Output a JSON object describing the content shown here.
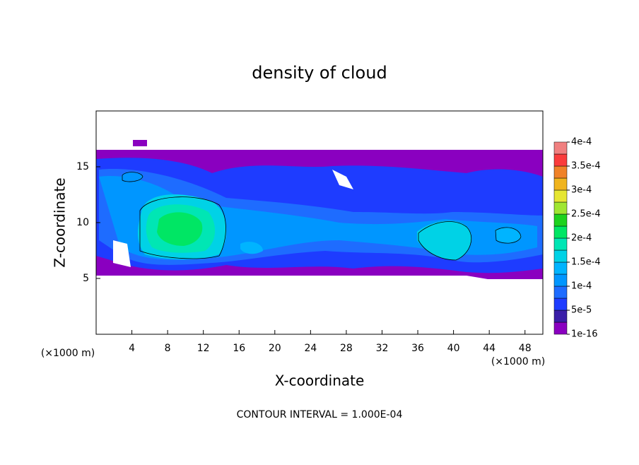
{
  "chart_data": {
    "type": "contour",
    "title": "density of cloud",
    "x_label": "X-coordinate",
    "y_label": "Z-coordinate",
    "x_unit": "(×1000 m)",
    "y_unit": "(×1000 m)",
    "footer": "CONTOUR INTERVAL = 1.000E-04",
    "xlim": [
      0,
      50
    ],
    "ylim": [
      0,
      20
    ],
    "xticks": [
      4,
      8,
      12,
      16,
      20,
      24,
      28,
      32,
      36,
      40,
      44,
      48
    ],
    "yticks": [
      5,
      10,
      15
    ],
    "colorbar_ticks": [
      {
        "value": 1e-16,
        "label": "1e-16"
      },
      {
        "value": 5e-05,
        "label": "5e-5"
      },
      {
        "value": 0.0001,
        "label": "1e-4"
      },
      {
        "value": 0.00015,
        "label": "1.5e-4"
      },
      {
        "value": 0.0002,
        "label": "2e-4"
      },
      {
        "value": 0.00025,
        "label": "2.5e-4"
      },
      {
        "value": 0.0003,
        "label": "3e-4"
      },
      {
        "value": 0.00035,
        "label": "3.5e-4"
      },
      {
        "value": 0.0004,
        "label": "4e-4"
      }
    ],
    "colorbar_colors": [
      "#8a00c0",
      "#3a1ea8",
      "#1e3cff",
      "#1e6cff",
      "#0096ff",
      "#00b4ff",
      "#00d2e6",
      "#00e6b4",
      "#00e664",
      "#1ed21e",
      "#a0e632",
      "#e6e632",
      "#f0b41e",
      "#f08228",
      "#fa3c3c",
      "#f08080"
    ]
  }
}
